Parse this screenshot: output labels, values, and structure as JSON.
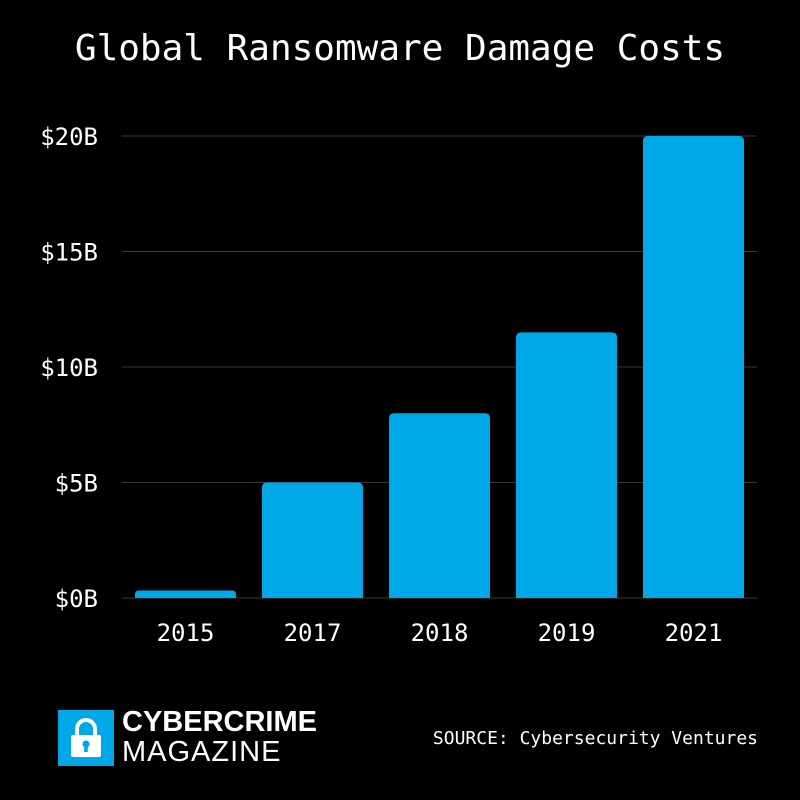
{
  "title": "Global Ransomware Damage Costs",
  "source": "SOURCE: Cybersecurity Ventures",
  "logo": {
    "line1": "CYBERCRIME",
    "line2": "MAGAZINE",
    "icon": "padlock-icon",
    "badge_color": "#00a8e8"
  },
  "colors": {
    "background": "#000000",
    "bar": "#00a8e8",
    "grid": "#3a3a3a",
    "text": "#ffffff"
  },
  "chart_data": {
    "type": "bar",
    "title": "Global Ransomware Damage Costs",
    "categories": [
      "2015",
      "2017",
      "2018",
      "2019",
      "2021"
    ],
    "values": [
      0.325,
      5,
      8,
      11.5,
      20
    ],
    "yticks": [
      0,
      5,
      10,
      15,
      20
    ],
    "ytick_labels": [
      "$0B",
      "$5B",
      "$10B",
      "$15B",
      "$20B"
    ],
    "ylim": [
      0,
      20
    ],
    "grid": true,
    "legend": "none"
  }
}
